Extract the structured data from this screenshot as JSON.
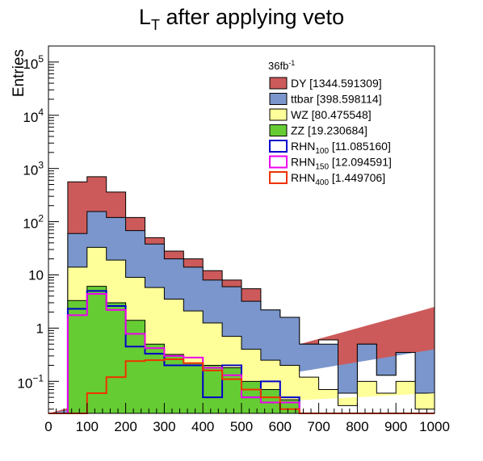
{
  "chart_data": {
    "type": "histogram",
    "title_main": "L",
    "title_sub": "T",
    "title_rest": " after applying veto",
    "ylabel": "Entries",
    "xlabel": "",
    "xlim": [
      0,
      1000
    ],
    "ylim": [
      0.025,
      200000
    ],
    "y_scale": "log",
    "x_ticks": [
      0,
      100,
      200,
      300,
      400,
      500,
      600,
      700,
      800,
      900,
      1000
    ],
    "x_tick_labels": [
      "0",
      "100",
      "200",
      "300",
      "400",
      "500",
      "600",
      "700",
      "800",
      "900",
      "1000"
    ],
    "y_tick_labels": [
      {
        "value": 0.1,
        "base": "10",
        "exp": "−1"
      },
      {
        "value": 1,
        "text": "1"
      },
      {
        "value": 10,
        "text": "10"
      },
      {
        "value": 100,
        "base": "10",
        "exp": "2"
      },
      {
        "value": 1000,
        "base": "10",
        "exp": "3"
      },
      {
        "value": 10000,
        "base": "10",
        "exp": "4"
      },
      {
        "value": 100000,
        "base": "10",
        "exp": "5"
      }
    ],
    "legend_header_base": "36fb",
    "legend_header_exp": "-1",
    "legend_placement": "top-right",
    "bin_edges": [
      0,
      50,
      100,
      150,
      200,
      250,
      300,
      350,
      400,
      450,
      500,
      550,
      600,
      650,
      700,
      750,
      800,
      850,
      900,
      950,
      1000
    ],
    "stacked_series": [
      {
        "name": "DY",
        "yield": "[1344.591309]",
        "color": "#cc5a5a",
        "cumulative": [
          0,
          560,
          700,
          360,
          120,
          50,
          28,
          20,
          12,
          8,
          5.5,
          2.2,
          1.6,
          0.5,
          0.6,
          0.1,
          0.5,
          0.13,
          0.35,
          0.06,
          2.5
        ]
      },
      {
        "name": "ttbar",
        "yield": "[398.598114]",
        "color": "#7a96cc",
        "cumulative": [
          0,
          60,
          155,
          120,
          68,
          38,
          20,
          14,
          8,
          6,
          3.2,
          2.2,
          1.6,
          0.5,
          0.5,
          0.06,
          0.5,
          0.13,
          0.35,
          0.06,
          0.4
        ]
      },
      {
        "name": "WZ",
        "yield": "[80.475548]",
        "color": "#ffff99",
        "cumulative": [
          0,
          14,
          33,
          19,
          9,
          5.8,
          3.5,
          2.1,
          1.25,
          0.7,
          0.4,
          0.25,
          0.2,
          0.12,
          0.07,
          0.035,
          0.1,
          0.06,
          0.1,
          0.03,
          0.06
        ]
      },
      {
        "name": "ZZ",
        "yield": "[19.230684]",
        "color": "#66cc33",
        "cumulative": [
          0,
          3.3,
          6.1,
          3.0,
          1.4,
          0.5,
          0.32,
          0.22,
          0.2,
          0.18,
          0.1,
          0.07,
          0.045,
          0,
          0,
          0,
          0,
          0,
          0,
          0,
          0
        ]
      }
    ],
    "line_series": [
      {
        "name": "RHN",
        "sub": "100",
        "yield": "[11.085160]",
        "color": "#0000cc",
        "values": [
          0,
          2.3,
          5.0,
          2.6,
          0.45,
          0.33,
          0.2,
          0.2,
          0.05,
          0.2,
          0.05,
          0.1,
          0.05,
          0,
          0,
          0,
          0,
          0,
          0,
          0,
          0
        ]
      },
      {
        "name": "RHN",
        "sub": "150",
        "yield": "[12.094591]",
        "color": "#ee00ee",
        "values": [
          0,
          1.75,
          4.4,
          2.2,
          0.78,
          0.42,
          0.3,
          0.28,
          0.18,
          0.13,
          0.05,
          0.04,
          0.04,
          0,
          0,
          0,
          0,
          0,
          0,
          0,
          0
        ]
      },
      {
        "name": "RHN",
        "sub": "400",
        "yield": "[1.449706]",
        "color": "#ee3300",
        "values": [
          0,
          0,
          0.06,
          0.12,
          0.24,
          0.25,
          0.26,
          0.22,
          0.16,
          0.11,
          0.07,
          0.05,
          0.03,
          0,
          0,
          0,
          0,
          0,
          0,
          0,
          0
        ]
      }
    ]
  }
}
